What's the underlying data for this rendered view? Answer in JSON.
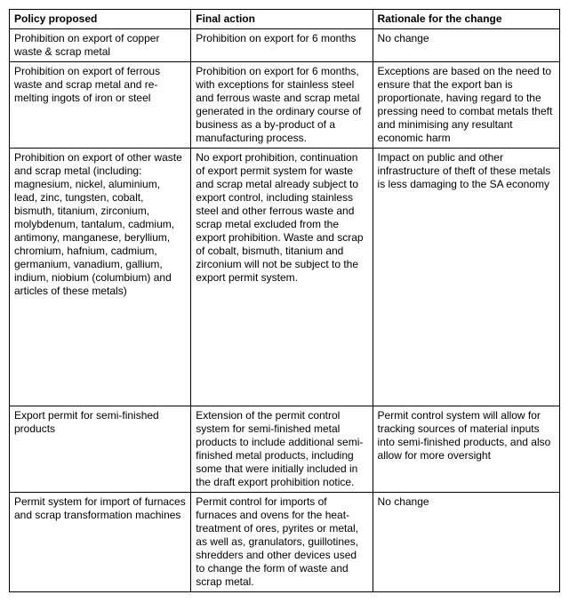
{
  "table": {
    "column_widths": [
      "33%",
      "33%",
      "34%"
    ],
    "row_heights": [
      null,
      null,
      null,
      290,
      null,
      null
    ],
    "headers": [
      "Policy proposed",
      "Final action",
      "Rationale for the change"
    ],
    "rows": [
      [
        "Prohibition on export of copper waste & scrap metal",
        "Prohibition on export for 6 months",
        "No change"
      ],
      [
        "Prohibition on export of ferrous waste and scrap metal and re-melting ingots of iron or steel",
        "Prohibition on export for 6 months, with exceptions for stainless steel and ferrous waste and scrap metal generated in the ordinary course of business as a by-product of a manufacturing process.",
        "Exceptions are based on the need to ensure that the export ban is proportionate, having regard to the pressing need to combat metals theft and minimising any resultant economic harm"
      ],
      [
        "Prohibition on export of other waste and scrap metal (including: magnesium, nickel, aluminium, lead, zinc, tungsten, cobalt, bismuth, titanium, zirconium, molybdenum, tantalum, cadmium, antimony, manganese, beryllium, chromium, hafnium, cadmium, germanium, vanadium, gallium, indium, niobium (columbium) and articles of these metals)",
        "No export prohibition, continuation of export permit system for waste and scrap metal already subject to export control, including stainless steel and other ferrous waste and scrap metal excluded from the export prohibition.  Waste and scrap of cobalt, bismuth, titanium and zirconium will not be subject to the export permit system.",
        "Impact on public and other infrastructure of theft of these metals is less damaging to the SA economy"
      ],
      [
        "Export permit for semi-finished products",
        "Extension of the permit control system for semi-finished metal products to include additional semi-finished metal products, including some that were initially included in the draft export prohibition notice.",
        "Permit control system will allow for tracking sources of material inputs into semi-finished products, and also allow for more oversight"
      ],
      [
        "Permit system for import of furnaces and scrap transformation machines",
        "Permit control for imports of furnaces and ovens for the heat-treatment of ores, pyrites or metal, as well as, granulators, guillotines, shredders and other devices used to change the form of waste and scrap metal.",
        "No change"
      ]
    ]
  }
}
